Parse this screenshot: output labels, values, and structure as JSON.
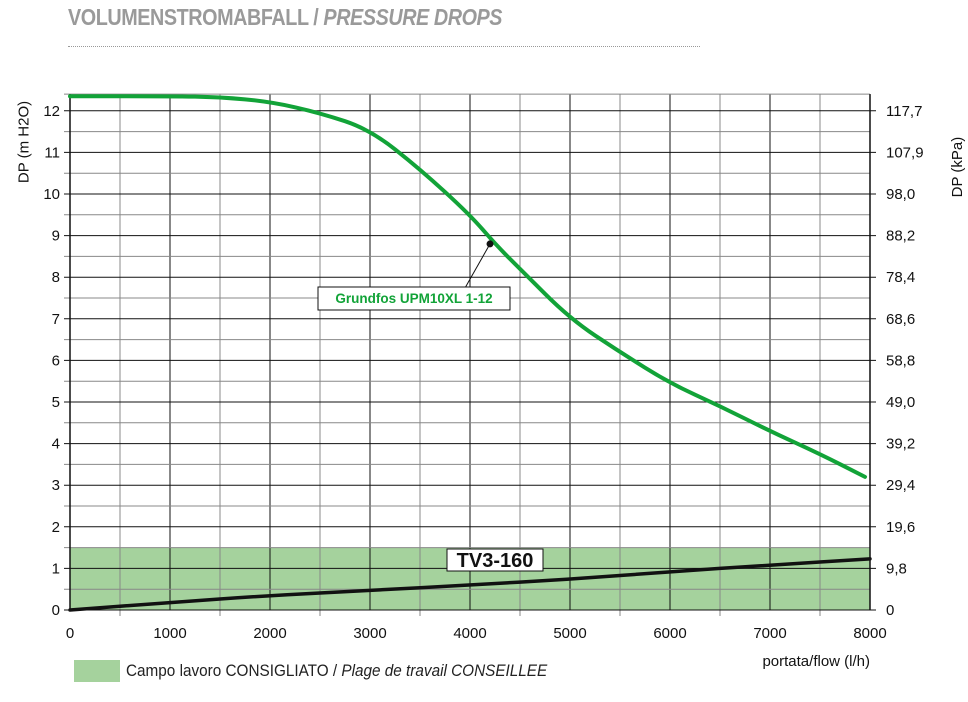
{
  "header": {
    "title_main": "VOLUMENSTROMABFALL",
    "title_sep": " / ",
    "title_italic": "PRESSURE DROPS"
  },
  "legend": {
    "label_main": "Campo lavoro CONSIGLIATO / ",
    "label_italic": "Plage de travail CONSEILLEE"
  },
  "chart_data": {
    "type": "line",
    "title": "VOLUMENSTROMABFALL / PRESSURE DROPS",
    "xlabel": "portata/flow (l/h)",
    "ylabel": "DP (m H2O)",
    "ylabel_right": "DP (kPa)",
    "xlim": [
      0,
      8000
    ],
    "ylim": [
      0,
      12.4
    ],
    "xticks": [
      0,
      1000,
      2000,
      3000,
      4000,
      5000,
      6000,
      7000,
      8000
    ],
    "yticks": [
      0,
      1,
      2,
      3,
      4,
      5,
      6,
      7,
      8,
      9,
      10,
      11,
      12
    ],
    "yticks_right": [
      "0",
      "9,8",
      "19,6",
      "29,4",
      "39,2",
      "49,0",
      "58,8",
      "68,6",
      "78,4",
      "88,2",
      "98,0",
      "107,9",
      "117,7"
    ],
    "grid": true,
    "recommended_band": {
      "label": "Campo lavoro CONSIGLIATO / Plage de travail CONSEILLEE",
      "y": [
        0,
        1.5
      ],
      "color": "#a5d29d"
    },
    "series": [
      {
        "name": "Grundfos UPM10XL 1-12",
        "color": "#12a338",
        "x": [
          0,
          1000,
          1500,
          2000,
          2500,
          3000,
          3500,
          4000,
          4250,
          4500,
          5000,
          5500,
          6000,
          6500,
          7000,
          7500,
          7950
        ],
        "y": [
          12.35,
          12.35,
          12.33,
          12.22,
          11.95,
          11.55,
          10.6,
          9.5,
          8.8,
          8.2,
          7.0,
          6.2,
          5.45,
          4.9,
          4.3,
          3.75,
          3.2
        ],
        "annotation_point": [
          4200,
          8.8
        ]
      },
      {
        "name": "TV3-160",
        "color": "#111111",
        "x": [
          0,
          1000,
          2000,
          3000,
          4000,
          5000,
          6000,
          7000,
          8000
        ],
        "y": [
          0,
          0.18,
          0.35,
          0.47,
          0.6,
          0.74,
          0.92,
          1.08,
          1.23
        ]
      }
    ]
  }
}
